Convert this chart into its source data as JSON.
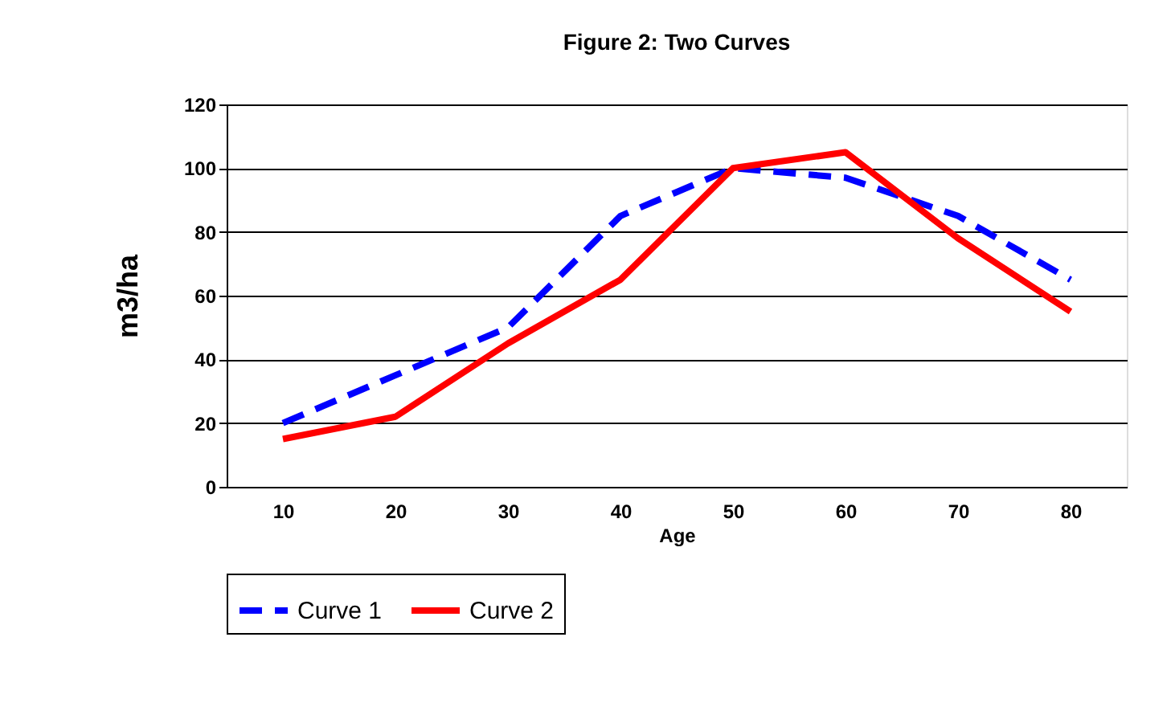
{
  "chart_data": {
    "type": "line",
    "title": "Figure 2: Two Curves",
    "xlabel": "Age",
    "ylabel": "m3/ha",
    "categories": [
      "10",
      "20",
      "30",
      "40",
      "50",
      "60",
      "70",
      "80"
    ],
    "series": [
      {
        "name": "Curve 1",
        "color": "#0000ff",
        "line_style": "dashed",
        "values": [
          20,
          35,
          50,
          85,
          100,
          97,
          85,
          65
        ]
      },
      {
        "name": "Curve 2",
        "color": "#ff0000",
        "line_style": "solid",
        "values": [
          15,
          22,
          45,
          65,
          100,
          105,
          78,
          55
        ]
      }
    ],
    "ylim": [
      0,
      120
    ],
    "yticks": [
      0,
      20,
      40,
      60,
      80,
      100,
      120
    ],
    "grid": "y",
    "legend": "bottom",
    "marker": "none"
  }
}
